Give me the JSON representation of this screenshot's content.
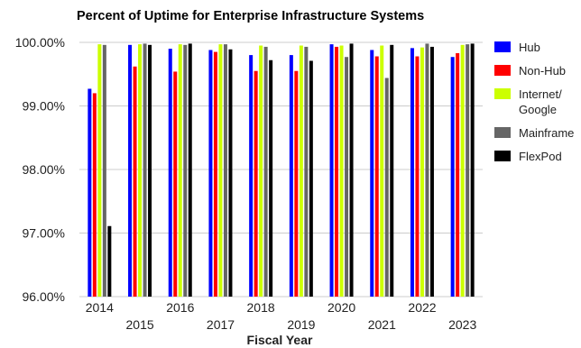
{
  "chart_data": {
    "type": "bar",
    "title": "Percent of Uptime for Enterprise Infrastructure Systems",
    "xlabel": "Fiscal Year",
    "ylabel": "",
    "ylim": [
      96,
      100
    ],
    "yticks": [
      "96.00%",
      "97.00%",
      "98.00%",
      "99.00%",
      "100.00%"
    ],
    "grid": true,
    "legend_position": "right",
    "categories": [
      "2014",
      "2015",
      "2016",
      "2017",
      "2018",
      "2019",
      "2020",
      "2021",
      "2022",
      "2023"
    ],
    "series": [
      {
        "name": "Hub",
        "color": "#0000ff",
        "values": [
          99.27,
          99.96,
          99.9,
          99.88,
          99.8,
          99.8,
          99.97,
          99.88,
          99.91,
          99.77
        ]
      },
      {
        "name": "Non-Hub",
        "color": "#ff0000",
        "values": [
          99.2,
          99.62,
          99.54,
          99.85,
          99.55,
          99.55,
          99.93,
          99.78,
          99.78,
          99.83
        ]
      },
      {
        "name": "Internet/ Google",
        "color": "#ccff00",
        "values": [
          99.97,
          99.97,
          99.97,
          99.97,
          99.95,
          99.95,
          99.95,
          99.95,
          99.92,
          99.96
        ]
      },
      {
        "name": "Mainframe",
        "color": "#666666",
        "values": [
          99.96,
          99.98,
          99.96,
          99.97,
          99.93,
          99.93,
          99.77,
          99.44,
          99.98,
          99.97
        ]
      },
      {
        "name": "FlexPod",
        "color": "#000000",
        "values": [
          97.11,
          99.96,
          99.98,
          99.89,
          99.72,
          99.71,
          99.98,
          99.96,
          99.93,
          99.98
        ]
      }
    ]
  }
}
